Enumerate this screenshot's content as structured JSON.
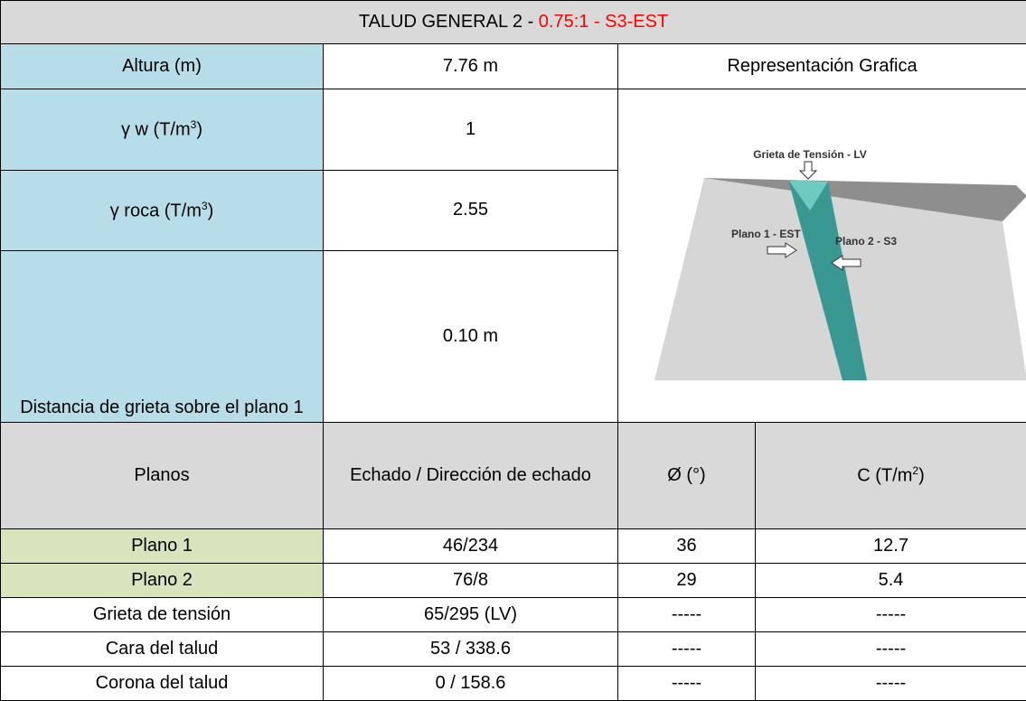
{
  "header": {
    "title_prefix": "TALUD GENERAL 2 - ",
    "title_highlight": "0.75:1 - S3-EST"
  },
  "properties": [
    {
      "label": "Altura (m)",
      "value": "7.76 m"
    },
    {
      "label": "γ w (T/m",
      "label_sup": "3",
      "label_tail": ")",
      "value": "1"
    },
    {
      "label": "γ roca (T/m",
      "label_sup": "3",
      "label_tail": ")",
      "value": "2.55"
    },
    {
      "label": "Distancia de grieta sobre el plano 1",
      "value": "0.10 m"
    }
  ],
  "graphic": {
    "title": "Representación Grafica",
    "labels": [
      "Grieta de Tensión - LV",
      "Plano 1 - EST",
      "Plano 2 - S3"
    ]
  },
  "table": {
    "header": [
      "Planos",
      "Echado / Dirección de echado",
      "Ø (°)",
      "C (T/m"
    ],
    "header_sup": "2",
    "header_tail": ")",
    "rows": [
      [
        "Plano 1",
        "46/234",
        "36",
        "12.7"
      ],
      [
        "Plano 2",
        "76/8",
        "29",
        "5.4"
      ],
      [
        "Grieta de tensión",
        "65/295 (LV)",
        "-----",
        "-----"
      ],
      [
        "Cara del talud",
        "53 / 338.6",
        "-----",
        "-----"
      ],
      [
        "Corona del talud",
        "0 / 158.6",
        "-----",
        "-----"
      ]
    ]
  }
}
